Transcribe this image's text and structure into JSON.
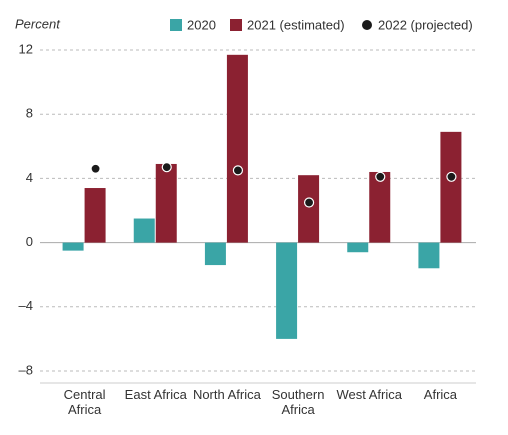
{
  "chart_data": {
    "type": "bar",
    "y_label": "Percent",
    "categories": [
      "Central Africa",
      "East Africa",
      "North Africa",
      "Southern Africa",
      "West Africa",
      "Africa"
    ],
    "series": [
      {
        "name": "2020",
        "color": "#3aa5a6",
        "values": [
          -0.5,
          1.5,
          -1.4,
          -6.0,
          -0.6,
          -1.6
        ]
      },
      {
        "name": "2021 (estimated)",
        "color": "#8b2131",
        "values": [
          3.4,
          4.9,
          11.7,
          4.2,
          4.4,
          6.9
        ]
      },
      {
        "name": "2022 (projected)",
        "color": "#1a1a1a",
        "mark": "point",
        "values": [
          4.6,
          4.7,
          4.5,
          2.5,
          4.1,
          4.1
        ]
      }
    ],
    "ylim": [
      -8,
      12
    ],
    "yticks": [
      {
        "value": -8,
        "label": "–8"
      },
      {
        "value": -4,
        "label": "–4"
      },
      0,
      4,
      8,
      12
    ],
    "grid": true
  }
}
